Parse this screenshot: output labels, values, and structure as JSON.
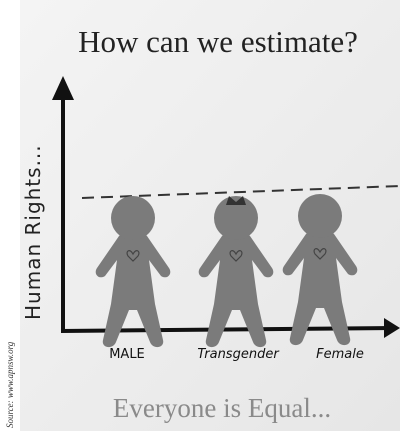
{
  "title": "How can we estimate?",
  "y_axis_label": "Human Rights...",
  "figures": [
    {
      "label": "MALE"
    },
    {
      "label": "Transgender"
    },
    {
      "label": "Female"
    }
  ],
  "caption": "Everyone is Equal...",
  "source": "Source: www.apnsw.org"
}
